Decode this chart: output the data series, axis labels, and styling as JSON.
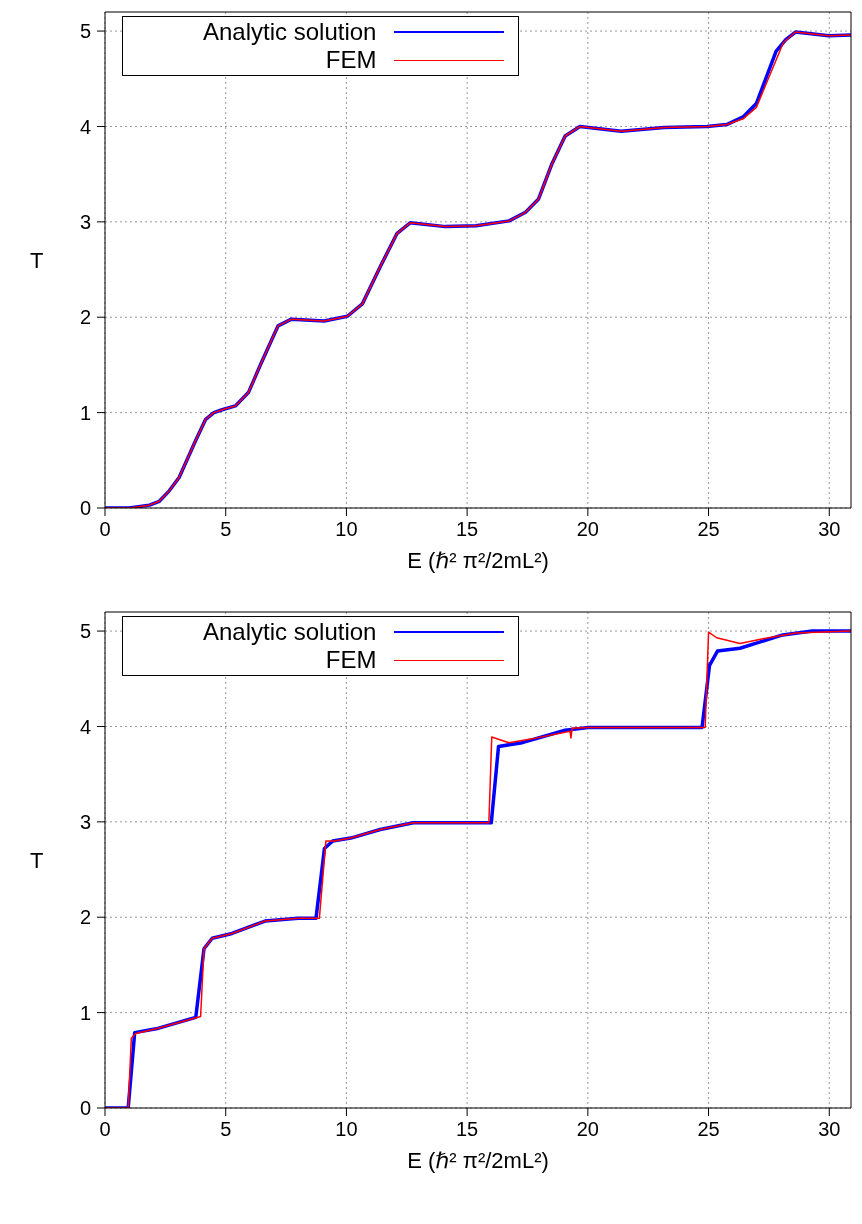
{
  "chart_data": [
    {
      "type": "line",
      "xlabel": "E (ℏ² π²/2mL²)",
      "ylabel": "T",
      "xlim": [
        0,
        30.9
      ],
      "ylim": [
        0,
        5.2
      ],
      "xticks": [
        0,
        5,
        10,
        15,
        20,
        25,
        30
      ],
      "yticks": [
        0,
        1,
        2,
        3,
        4,
        5
      ],
      "grid": true,
      "legend": "top left",
      "marker": "none",
      "series": [
        {
          "name": "Analytic solution",
          "color": "#0000ff",
          "x": [
            0,
            1.0,
            1.84,
            2.25,
            2.66,
            3.07,
            3.76,
            4.17,
            4.51,
            4.85,
            5.4,
            5.94,
            6.49,
            7.17,
            7.72,
            9.08,
            10.04,
            10.66,
            11.4,
            12.1,
            12.64,
            14.1,
            15.37,
            16.74,
            17.42,
            17.96,
            18.5,
            19.06,
            19.67,
            21.38,
            23.16,
            24.93,
            25.75,
            26.43,
            26.98,
            27.8,
            28.2,
            28.6,
            29.98,
            30.9
          ],
          "values": [
            0,
            0,
            0.03,
            0.07,
            0.18,
            0.32,
            0.71,
            0.93,
            1.0,
            1.03,
            1.07,
            1.21,
            1.53,
            1.91,
            1.98,
            1.96,
            2.01,
            2.14,
            2.53,
            2.88,
            2.99,
            2.95,
            2.96,
            3.01,
            3.1,
            3.24,
            3.6,
            3.9,
            4.0,
            3.95,
            3.99,
            4.0,
            4.02,
            4.1,
            4.24,
            4.79,
            4.91,
            4.99,
            4.95,
            4.96
          ]
        },
        {
          "name": "FEM",
          "color": "#ff0000",
          "x": [
            0,
            1.0,
            1.84,
            2.25,
            2.66,
            3.07,
            3.76,
            4.17,
            4.51,
            4.85,
            5.4,
            5.94,
            6.49,
            7.17,
            7.72,
            9.08,
            10.04,
            10.66,
            11.4,
            12.1,
            12.64,
            14.1,
            15.37,
            16.74,
            17.42,
            17.96,
            18.5,
            19.06,
            19.67,
            21.38,
            23.16,
            24.93,
            25.75,
            26.43,
            26.98,
            28.1,
            28.6,
            29.98,
            30.9
          ],
          "values": [
            0,
            0,
            0.03,
            0.07,
            0.18,
            0.32,
            0.71,
            0.93,
            1.0,
            1.03,
            1.07,
            1.21,
            1.53,
            1.91,
            1.98,
            1.96,
            2.01,
            2.14,
            2.53,
            2.88,
            2.99,
            2.95,
            2.96,
            3.01,
            3.1,
            3.24,
            3.6,
            3.9,
            4.0,
            3.95,
            3.99,
            4.0,
            4.02,
            4.08,
            4.2,
            4.88,
            4.99,
            4.95,
            4.96
          ]
        }
      ]
    },
    {
      "type": "line",
      "xlabel": "E (ℏ² π²/2mL²)",
      "ylabel": "T",
      "xlim": [
        0,
        30.9
      ],
      "ylim": [
        0,
        5.2
      ],
      "xticks": [
        0,
        5,
        10,
        15,
        20,
        25,
        30
      ],
      "yticks": [
        0,
        1,
        2,
        3,
        4,
        5
      ],
      "grid": true,
      "legend": "top left",
      "marker": "none",
      "series": [
        {
          "name": "Analytic solution",
          "color": "#0000ff",
          "x": [
            0,
            0.96,
            1.23,
            2.12,
            3.76,
            4.1,
            4.44,
            5.26,
            6.63,
            8.0,
            8.74,
            9.09,
            9.43,
            10.18,
            11.4,
            12.77,
            15.37,
            16.0,
            16.3,
            17.28,
            19.06,
            20.02,
            23.16,
            24.73,
            25.04,
            25.37,
            26.3,
            28.07,
            29.3,
            30.9
          ],
          "values": [
            0,
            0,
            0.79,
            0.83,
            0.95,
            1.67,
            1.78,
            1.83,
            1.96,
            1.99,
            1.99,
            2.72,
            2.8,
            2.83,
            2.92,
            2.99,
            2.99,
            2.99,
            3.79,
            3.83,
            3.96,
            3.99,
            3.99,
            3.99,
            4.64,
            4.79,
            4.82,
            4.96,
            5.0,
            5.0
          ]
        },
        {
          "name": "FEM",
          "color": "#ff0000",
          "x": [
            0,
            0.96,
            1.09,
            1.27,
            2.12,
            3.96,
            4.1,
            4.44,
            5.26,
            6.63,
            8.0,
            8.88,
            9.15,
            9.5,
            10.18,
            11.4,
            12.77,
            15.9,
            16.02,
            16.73,
            17.69,
            19.26,
            19.3,
            19.35,
            20.02,
            24.86,
            25.0,
            25.34,
            26.3,
            27.25,
            28.62,
            30.9
          ],
          "values": [
            0,
            0,
            0.73,
            0.78,
            0.83,
            0.96,
            1.67,
            1.78,
            1.83,
            1.96,
            1.99,
            1.99,
            2.8,
            2.8,
            2.83,
            2.92,
            2.99,
            2.99,
            3.89,
            3.83,
            3.87,
            3.95,
            3.88,
            3.98,
            3.99,
            3.99,
            4.99,
            4.93,
            4.87,
            4.92,
            4.98,
            5.0
          ]
        }
      ]
    }
  ]
}
